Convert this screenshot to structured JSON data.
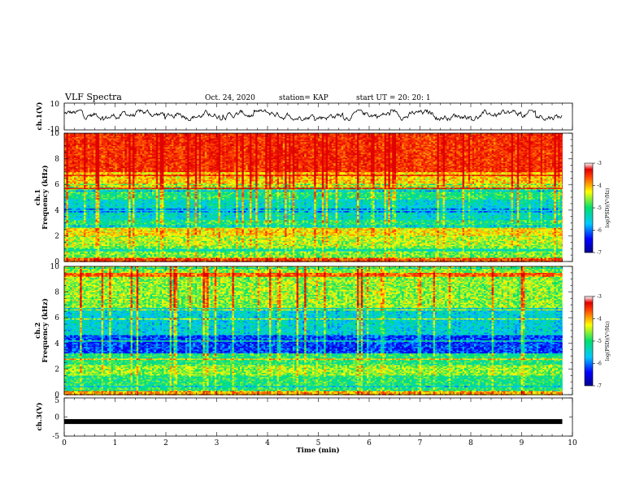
{
  "header": {
    "title": "VLF Spectra",
    "date": "Oct. 24, 2020",
    "station": "station= KAP",
    "start": "start UT =  20: 20: 1"
  },
  "chart_data": [
    {
      "type": "line",
      "panel": "ch1-waveform",
      "ylabel": "ch.1(V)",
      "ylim": [
        -10,
        10
      ],
      "yticks": [
        "10",
        "-10"
      ],
      "baseline_value": 0,
      "fluctuation_range": [
        -3,
        5
      ],
      "xlim": [
        0,
        10
      ],
      "x_extent_min": 9.8
    },
    {
      "type": "heatmap",
      "panel": "ch1-spectrogram",
      "ylabel": "Frequency (kHz)",
      "ylabel_prefix": "ch.1",
      "ylim": [
        0,
        10
      ],
      "yticks": [
        "0",
        "2",
        "4",
        "6",
        "8",
        "10"
      ],
      "xlim": [
        0,
        10
      ],
      "x_extent_min": 9.8,
      "colorbar": {
        "label": "log(PSD)(V²/Hz)",
        "range": [
          -7,
          -3
        ],
        "ticks": [
          "-3",
          "-4",
          "-5",
          "-6",
          "-7"
        ]
      },
      "bands_khz": [
        {
          "from": 0.0,
          "to": 0.3,
          "level": -3.6
        },
        {
          "from": 0.3,
          "to": 1.2,
          "level": -4.7
        },
        {
          "from": 1.2,
          "to": 2.0,
          "level": -4.5
        },
        {
          "from": 2.0,
          "to": 2.6,
          "level": -4.2
        },
        {
          "from": 2.6,
          "to": 3.2,
          "level": -5.0
        },
        {
          "from": 3.2,
          "to": 4.8,
          "level": -5.4
        },
        {
          "from": 4.8,
          "to": 5.6,
          "level": -5.0
        },
        {
          "from": 5.6,
          "to": 7.0,
          "level": -4.1
        },
        {
          "from": 7.0,
          "to": 10.0,
          "level": -3.4
        }
      ]
    },
    {
      "type": "heatmap",
      "panel": "ch2-spectrogram",
      "ylabel": "Frequency (kHz)",
      "ylabel_prefix": "ch.2",
      "ylim": [
        0,
        10
      ],
      "yticks": [
        "0",
        "2",
        "4",
        "6",
        "8",
        "10"
      ],
      "xlim": [
        0,
        10
      ],
      "x_extent_min": 9.8,
      "colorbar": {
        "label": "log(PSD)(V²/Hz)",
        "range": [
          -7,
          -3
        ],
        "ticks": [
          "-3",
          "-4",
          "-5",
          "-6",
          "-7"
        ]
      },
      "bands_khz": [
        {
          "from": 0.0,
          "to": 0.3,
          "level": -4.0
        },
        {
          "from": 0.3,
          "to": 1.5,
          "level": -5.0
        },
        {
          "from": 1.5,
          "to": 2.3,
          "level": -4.6
        },
        {
          "from": 2.3,
          "to": 3.2,
          "level": -5.0
        },
        {
          "from": 3.2,
          "to": 4.6,
          "level": -6.2
        },
        {
          "from": 4.6,
          "to": 6.8,
          "level": -5.5
        },
        {
          "from": 6.8,
          "to": 10.0,
          "level": -4.6
        }
      ]
    },
    {
      "type": "line",
      "panel": "ch3-waveform",
      "ylabel": "ch.3(V)",
      "ylim": [
        -5,
        5
      ],
      "yticks": [
        "5",
        "0",
        "-5"
      ],
      "constant_value": -1.2,
      "xlim": [
        0,
        10
      ],
      "x_extent_min": 9.8,
      "xlabel": "Time (min)",
      "xticks": [
        "0",
        "1",
        "2",
        "3",
        "4",
        "5",
        "6",
        "7",
        "8",
        "9",
        "10"
      ]
    }
  ]
}
